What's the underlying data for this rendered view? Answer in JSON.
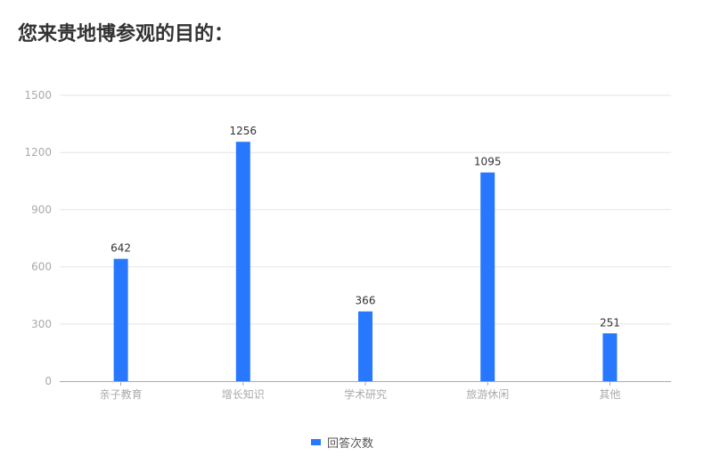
{
  "title": "您来贵地博参观的目的：",
  "chart_data": {
    "type": "bar",
    "categories": [
      "亲子教育",
      "增长知识",
      "学术研究",
      "旅游休闲",
      "其他"
    ],
    "series": [
      {
        "name": "回答次数",
        "values": [
          642,
          1256,
          366,
          1095,
          251
        ]
      }
    ],
    "ylim": [
      0,
      1500
    ],
    "yticks": [
      0,
      300,
      600,
      900,
      1200,
      1500
    ],
    "grid": true,
    "legend": "bottom",
    "color": "#2878ff"
  }
}
